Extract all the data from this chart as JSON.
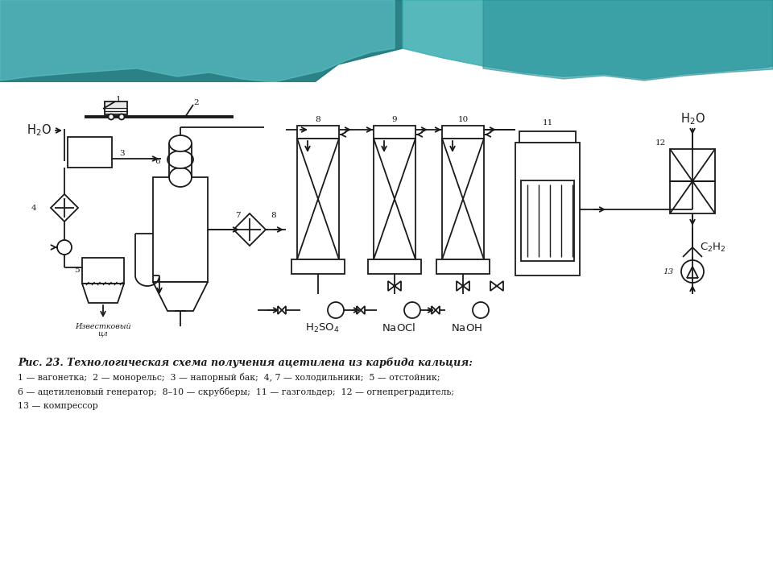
{
  "title": "Рис. 23. Технологическая схема получения ацетилена из карбида кальция:",
  "caption1": "1 — вагонетка;  2 — монорельс;  3 — напорный бак;  4, 7 — холодильники;  5 — отстойник;",
  "caption2": "6 — ацетиленовый генератор;  8–10 — скрубберы;  11 — газгольдер;  12 — огнепреградитель;",
  "caption3": "13 — компрессор",
  "bg_color": "#ffffff",
  "lc": "#1a1a1a",
  "lw": 1.3
}
